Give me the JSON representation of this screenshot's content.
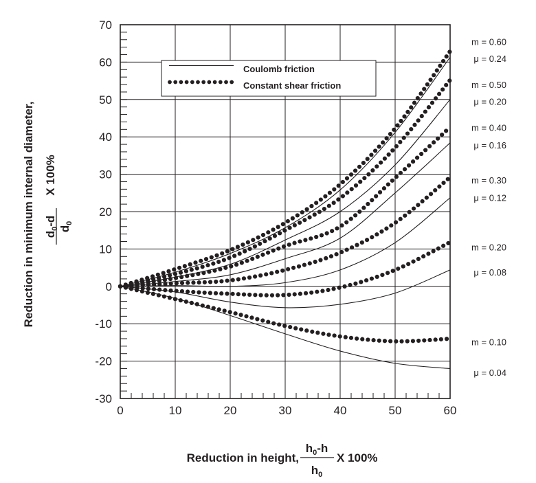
{
  "chart_data": {
    "type": "line",
    "title": "",
    "xlabel": {
      "prefix": "Reduction in height, ",
      "numerator": "h0-h",
      "denominator": "h0",
      "suffix": "X 100%"
    },
    "ylabel": {
      "main": "Reduction in minimum internal diameter,",
      "numerator": "d0-d",
      "denominator": "d0",
      "suffix": "X 100%"
    },
    "xlim": [
      0,
      60
    ],
    "ylim": [
      -30,
      70
    ],
    "xticks": [
      0,
      10,
      20,
      30,
      40,
      50,
      60
    ],
    "yticks": [
      70,
      60,
      50,
      40,
      30,
      20,
      10,
      0,
      -10,
      -20,
      -30
    ],
    "xtick_labels": [
      "0",
      "10",
      "20",
      "30",
      "40",
      "50",
      "60"
    ],
    "ytick_labels": [
      "70",
      "60",
      "50",
      "40",
      "30",
      "20",
      "10",
      "0",
      "-10",
      "-20",
      "-30"
    ],
    "grid": true,
    "minor_ticks_per_major": 5,
    "legend": {
      "position": "top-left",
      "entries": [
        {
          "label": "Coulomb friction",
          "style": "solid"
        },
        {
          "label": "Constant shear friction",
          "style": "dotted"
        }
      ]
    },
    "x": [
      0,
      10,
      20,
      30,
      40,
      50,
      60
    ],
    "series": [
      {
        "name": "m = 0.60",
        "style": "dotted",
        "annotation": "m = 0.60",
        "values": [
          0,
          4.6,
          9.7,
          17.0,
          27.3,
          42.3,
          62.9
        ]
      },
      {
        "name": "μ = 0.24",
        "style": "solid",
        "annotation": "μ = 0.24",
        "values": [
          0,
          3.8,
          8.8,
          15.7,
          25.8,
          41.2,
          61.3
        ]
      },
      {
        "name": "m = 0.50",
        "style": "dotted",
        "annotation": "m = 0.50",
        "values": [
          0,
          3.3,
          7.7,
          15.0,
          23.6,
          37.1,
          55.2
        ]
      },
      {
        "name": "μ = 0.20",
        "style": "solid",
        "annotation": "μ = 0.20",
        "values": [
          0,
          2.5,
          5.9,
          12.4,
          20.0,
          32.5,
          50.0
        ]
      },
      {
        "name": "m = 0.40",
        "style": "dotted",
        "annotation": "m = 0.40",
        "values": [
          0,
          2.2,
          5.3,
          10.8,
          16.0,
          29.0,
          42.6
        ]
      },
      {
        "name": "μ = 0.16",
        "style": "solid",
        "annotation": "μ = 0.16",
        "values": [
          0,
          1.3,
          3.1,
          7.4,
          12.9,
          25.0,
          38.4
        ]
      },
      {
        "name": "m = 0.30",
        "style": "dotted",
        "annotation": "m = 0.30",
        "values": [
          0,
          0.8,
          1.6,
          4.4,
          9.0,
          17.0,
          29.2
        ]
      },
      {
        "name": "μ = 0.12",
        "style": "solid",
        "annotation": "μ = 0.12",
        "values": [
          0,
          0.2,
          0.0,
          1.0,
          4.4,
          11.7,
          23.7
        ]
      },
      {
        "name": "m = 0.20",
        "style": "dotted",
        "annotation": "m = 0.20",
        "values": [
          0,
          -1.2,
          -2.0,
          -2.3,
          -0.3,
          4.4,
          11.8
        ]
      },
      {
        "name": "μ = 0.08",
        "style": "solid",
        "annotation": "μ = 0.08",
        "values": [
          0,
          -1.5,
          -4.2,
          -5.7,
          -4.8,
          -1.8,
          4.4
        ]
      },
      {
        "name": "m = 0.10",
        "style": "dotted",
        "annotation": "m = 0.10",
        "values": [
          0,
          -3.4,
          -6.9,
          -10.6,
          -13.4,
          -14.7,
          -14.0
        ]
      },
      {
        "name": "μ = 0.04",
        "style": "solid",
        "annotation": "μ = 0.04",
        "values": [
          0,
          -3.2,
          -7.8,
          -12.7,
          -17.3,
          -20.6,
          -22.0
        ]
      }
    ],
    "annotations_right": [
      {
        "text": "m = 0.60",
        "y": 65.5
      },
      {
        "text": "μ = 0.24",
        "y": 61.0
      },
      {
        "text": "m = 0.50",
        "y": 54.0
      },
      {
        "text": "μ = 0.20",
        "y": 49.5
      },
      {
        "text": "m = 0.40",
        "y": 42.5
      },
      {
        "text": "μ = 0.16",
        "y": 37.8
      },
      {
        "text": "m = 0.30",
        "y": 28.5
      },
      {
        "text": "μ = 0.12",
        "y": 23.8
      },
      {
        "text": "m = 0.20",
        "y": 10.5
      },
      {
        "text": "μ = 0.08",
        "y": 3.8
      },
      {
        "text": "m = 0.10",
        "y": -14.8
      },
      {
        "text": "μ = 0.04",
        "y": -23.0
      }
    ]
  }
}
